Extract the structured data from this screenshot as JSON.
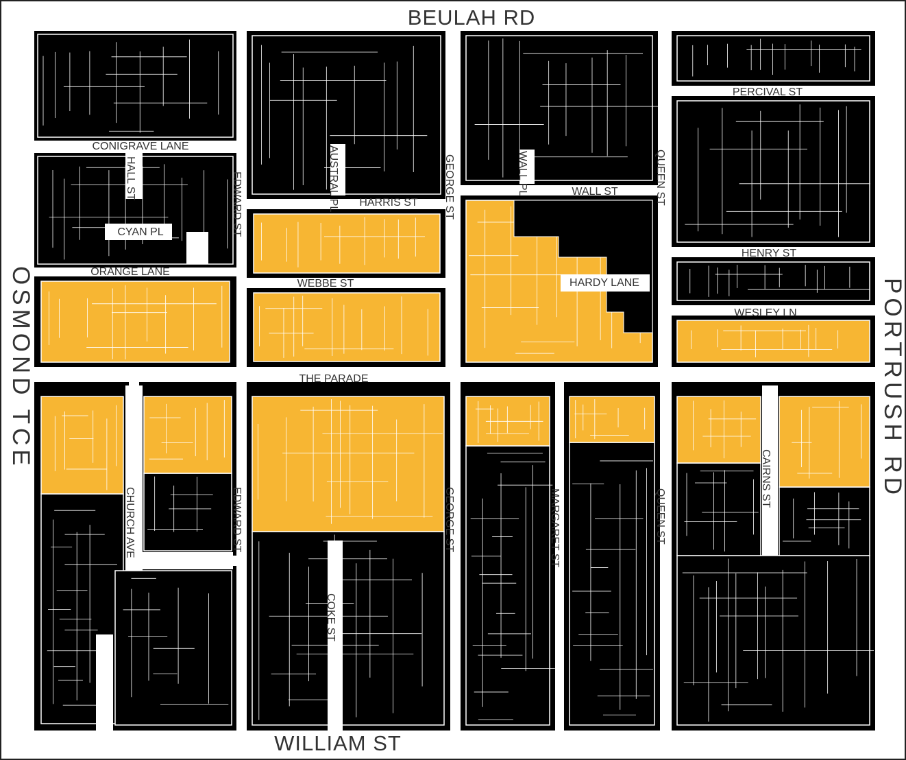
{
  "streets": [
    "BEULAH RD",
    "WILLIAM ST",
    "OSMOND TCE",
    "PORTRUSH RD",
    "CONIGRAVE LANE",
    "HALL ST",
    "CYAN PL",
    "ORANGE LANE",
    "EDWARD ST",
    "EDWARD ST",
    "AUSTRAL PL",
    "HARRIS ST",
    "WEBBE ST",
    "GEORGE ST",
    "GEORGE ST",
    "WALL PL",
    "WALL ST",
    "QUEEN ST",
    "QUEEN ST",
    "PERCIVAL ST",
    "HENRY ST",
    "WESLEY LN",
    "HARDY LANE",
    "THE PARADE",
    "CHURCH AVE",
    "MARGARET ST",
    "COKE ST",
    "CAIRNS ST"
  ]
}
